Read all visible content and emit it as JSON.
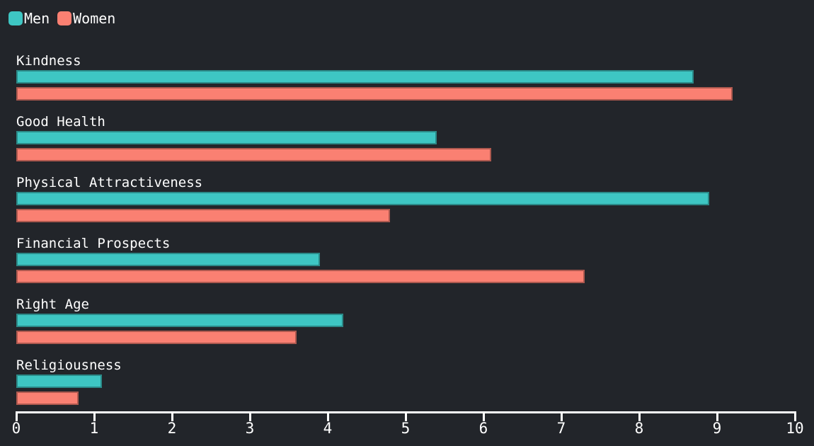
{
  "colors": {
    "background": "#22252a",
    "text": "#ffffff",
    "axis": "#ffffff",
    "men": "#3ec6c3",
    "women": "#fa8072"
  },
  "legend": {
    "items": [
      {
        "label": "Men",
        "swatch": "men-swatch-icon"
      },
      {
        "label": "Women",
        "swatch": "women-swatch-icon"
      }
    ]
  },
  "chart_data": {
    "type": "bar",
    "orientation": "horizontal",
    "title": "",
    "xlabel": "",
    "ylabel": "",
    "categories": [
      "Kindness",
      "Good Health",
      "Physical Attractiveness",
      "Financial Prospects",
      "Right Age",
      "Religiousness"
    ],
    "series": [
      {
        "name": "Men",
        "color": "#3ec6c3",
        "values": [
          8.7,
          5.4,
          8.9,
          3.9,
          4.2,
          1.1
        ]
      },
      {
        "name": "Women",
        "color": "#fa8072",
        "values": [
          9.2,
          6.1,
          4.8,
          7.3,
          3.6,
          0.8
        ]
      }
    ],
    "xlim": [
      0,
      10
    ],
    "xticks": [
      0,
      1,
      2,
      3,
      4,
      5,
      6,
      7,
      8,
      9,
      10
    ],
    "grid": false,
    "legend_position": "top-left"
  }
}
